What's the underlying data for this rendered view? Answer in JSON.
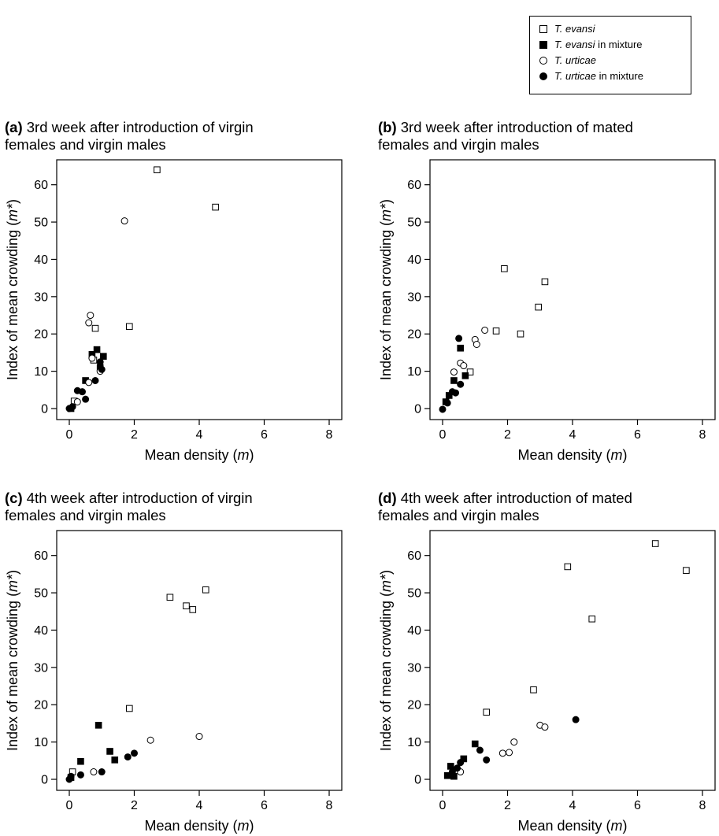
{
  "legend": {
    "items": [
      {
        "shape": "square-open",
        "species": "T. evansi",
        "suffix": ""
      },
      {
        "shape": "square-filled",
        "species": "T. evansi",
        "suffix": " in mixture"
      },
      {
        "shape": "circle-open",
        "species": "T. urticae",
        "suffix": ""
      },
      {
        "shape": "circle-filled",
        "species": "T. urticae",
        "suffix": " in mixture"
      }
    ]
  },
  "panels": [
    {
      "tag": "(a)",
      "title_line1": "3rd week after introduction of virgin",
      "title_line2": "females and virgin males"
    },
    {
      "tag": "(b)",
      "title_line1": "3rd week after introduction of mated",
      "title_line2": "females and virgin males"
    },
    {
      "tag": "(c)",
      "title_line1": "4th week after introduction of virgin",
      "title_line2": "females and virgin males"
    },
    {
      "tag": "(d)",
      "title_line1": "4th week after introduction of mated",
      "title_line2": "females and virgin males"
    }
  ],
  "chart_data": [
    {
      "type": "scatter",
      "xlabel": "Mean density (m)",
      "ylabel": "Index of mean crowding (m*)",
      "xlim": [
        0,
        8
      ],
      "ylim": [
        0,
        65
      ],
      "xticks": [
        0,
        2,
        4,
        6,
        8
      ],
      "yticks": [
        0,
        10,
        20,
        30,
        40,
        50,
        60
      ],
      "series": [
        {
          "name": "T. evansi",
          "marker": "square-open",
          "points": [
            [
              0.15,
              2
            ],
            [
              0.75,
              13
            ],
            [
              0.8,
              21.5
            ],
            [
              1.85,
              22
            ],
            [
              2.7,
              64
            ],
            [
              4.5,
              54
            ]
          ]
        },
        {
          "name": "T. evansi in mixture",
          "marker": "square-filled",
          "points": [
            [
              0.05,
              0
            ],
            [
              0.5,
              7.5
            ],
            [
              0.7,
              14.5
            ],
            [
              0.85,
              15.8
            ],
            [
              0.95,
              11
            ],
            [
              1.05,
              14
            ]
          ]
        },
        {
          "name": "T. urticae",
          "marker": "circle-open",
          "points": [
            [
              0.25,
              1.8
            ],
            [
              0.6,
              23
            ],
            [
              0.65,
              25
            ],
            [
              0.7,
              13.5
            ],
            [
              0.6,
              7
            ],
            [
              0.95,
              10
            ],
            [
              1.7,
              50.3
            ]
          ]
        },
        {
          "name": "T. urticae in mixture",
          "marker": "circle-filled",
          "points": [
            [
              0,
              0
            ],
            [
              0.1,
              0.5
            ],
            [
              0.25,
              4.8
            ],
            [
              0.4,
              4.5
            ],
            [
              0.5,
              2.5
            ],
            [
              0.8,
              7.5
            ],
            [
              0.95,
              12.5
            ],
            [
              1,
              10.5
            ]
          ]
        }
      ]
    },
    {
      "type": "scatter",
      "xlabel": "Mean density (m)",
      "ylabel": "Index of mean crowding (m*)",
      "xlim": [
        0,
        8
      ],
      "ylim": [
        0,
        65
      ],
      "xticks": [
        0,
        2,
        4,
        6,
        8
      ],
      "yticks": [
        0,
        10,
        20,
        30,
        40,
        50,
        60
      ],
      "series": [
        {
          "name": "T. evansi",
          "marker": "square-open",
          "points": [
            [
              0.85,
              9.8
            ],
            [
              1.65,
              20.8
            ],
            [
              1.9,
              37.5
            ],
            [
              2.4,
              20
            ],
            [
              2.95,
              27.2
            ],
            [
              3.15,
              34
            ]
          ]
        },
        {
          "name": "T. evansi in mixture",
          "marker": "square-filled",
          "points": [
            [
              0.1,
              1.8
            ],
            [
              0.2,
              3.5
            ],
            [
              0.35,
              7.5
            ],
            [
              0.55,
              16.2
            ],
            [
              0.7,
              8.8
            ]
          ]
        },
        {
          "name": "T. urticae",
          "marker": "circle-open",
          "points": [
            [
              0.35,
              9.8
            ],
            [
              0.55,
              12.2
            ],
            [
              0.65,
              11.5
            ],
            [
              1,
              18.5
            ],
            [
              1.05,
              17.2
            ],
            [
              1.3,
              21
            ]
          ]
        },
        {
          "name": "T. urticae in mixture",
          "marker": "circle-filled",
          "points": [
            [
              0,
              -0.2
            ],
            [
              0.15,
              1.5
            ],
            [
              0.3,
              4.5
            ],
            [
              0.4,
              4.2
            ],
            [
              0.5,
              18.8
            ],
            [
              0.55,
              6.5
            ]
          ]
        }
      ]
    },
    {
      "type": "scatter",
      "xlabel": "Mean density (m)",
      "ylabel": "Index of mean crowding (m*)",
      "xlim": [
        0,
        8
      ],
      "ylim": [
        0,
        65
      ],
      "xticks": [
        0,
        2,
        4,
        6,
        8
      ],
      "yticks": [
        0,
        10,
        20,
        30,
        40,
        50,
        60
      ],
      "series": [
        {
          "name": "T. evansi",
          "marker": "square-open",
          "points": [
            [
              0.1,
              2
            ],
            [
              1.85,
              19
            ],
            [
              3.1,
              48.8
            ],
            [
              3.6,
              46.5
            ],
            [
              3.8,
              45.5
            ],
            [
              4.2,
              50.8
            ]
          ]
        },
        {
          "name": "T. evansi in mixture",
          "marker": "square-filled",
          "points": [
            [
              0.05,
              0.5
            ],
            [
              0.35,
              4.8
            ],
            [
              0.9,
              14.5
            ],
            [
              1.25,
              7.5
            ],
            [
              1.4,
              5.2
            ]
          ]
        },
        {
          "name": "T. urticae",
          "marker": "circle-open",
          "points": [
            [
              0.75,
              2
            ],
            [
              2.5,
              10.5
            ],
            [
              4,
              11.5
            ]
          ]
        },
        {
          "name": "T. urticae in mixture",
          "marker": "circle-filled",
          "points": [
            [
              0,
              0
            ],
            [
              0.05,
              0.8
            ],
            [
              0.35,
              1.2
            ],
            [
              1,
              2
            ],
            [
              1.8,
              6
            ],
            [
              2,
              7
            ]
          ]
        }
      ]
    },
    {
      "type": "scatter",
      "xlabel": "Mean density (m)",
      "ylabel": "Index of mean crowding (m*)",
      "xlim": [
        0,
        8
      ],
      "ylim": [
        0,
        65
      ],
      "xticks": [
        0,
        2,
        4,
        6,
        8
      ],
      "yticks": [
        0,
        10,
        20,
        30,
        40,
        50,
        60
      ],
      "series": [
        {
          "name": "T. evansi",
          "marker": "square-open",
          "points": [
            [
              1.35,
              18
            ],
            [
              2.8,
              24
            ],
            [
              3.85,
              57
            ],
            [
              4.6,
              43
            ],
            [
              6.55,
              63.2
            ],
            [
              7.5,
              56
            ]
          ]
        },
        {
          "name": "T. evansi in mixture",
          "marker": "square-filled",
          "points": [
            [
              0.15,
              1
            ],
            [
              0.25,
              3.5
            ],
            [
              0.35,
              0.8
            ],
            [
              0.65,
              5.5
            ],
            [
              1,
              9.5
            ]
          ]
        },
        {
          "name": "T. urticae",
          "marker": "circle-open",
          "points": [
            [
              0.55,
              2
            ],
            [
              1.85,
              7
            ],
            [
              2.05,
              7.2
            ],
            [
              2.2,
              10
            ],
            [
              3,
              14.5
            ],
            [
              3.15,
              14
            ]
          ]
        },
        {
          "name": "T. urticae in mixture",
          "marker": "circle-filled",
          "points": [
            [
              0.3,
              2
            ],
            [
              0.45,
              3
            ],
            [
              0.55,
              4.5
            ],
            [
              1.15,
              7.8
            ],
            [
              1.35,
              5.2
            ],
            [
              4.1,
              16
            ]
          ]
        }
      ]
    }
  ]
}
